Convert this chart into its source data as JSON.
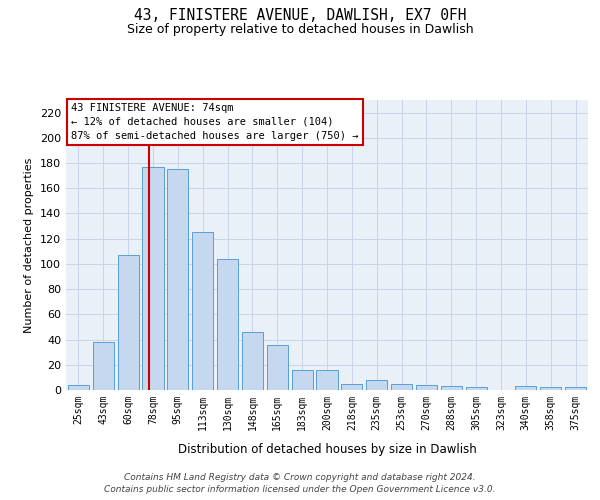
{
  "title": "43, FINISTERE AVENUE, DAWLISH, EX7 0FH",
  "subtitle": "Size of property relative to detached houses in Dawlish",
  "xlabel": "Distribution of detached houses by size in Dawlish",
  "ylabel": "Number of detached properties",
  "bar_labels": [
    "25sqm",
    "43sqm",
    "60sqm",
    "78sqm",
    "95sqm",
    "113sqm",
    "130sqm",
    "148sqm",
    "165sqm",
    "183sqm",
    "200sqm",
    "218sqm",
    "235sqm",
    "253sqm",
    "270sqm",
    "288sqm",
    "305sqm",
    "323sqm",
    "340sqm",
    "358sqm",
    "375sqm"
  ],
  "bar_values": [
    4,
    38,
    107,
    177,
    175,
    125,
    104,
    46,
    36,
    16,
    16,
    5,
    8,
    5,
    4,
    3,
    2,
    0,
    3,
    2,
    2
  ],
  "bar_color": "#c5d8f0",
  "bar_edge_color": "#5a9fd4",
  "ylim": [
    0,
    230
  ],
  "yticks": [
    0,
    20,
    40,
    60,
    80,
    100,
    120,
    140,
    160,
    180,
    200,
    220
  ],
  "vline_x": 2.82,
  "vline_color": "#cc0000",
  "annotation_line1": "43 FINISTERE AVENUE: 74sqm",
  "annotation_line2": "← 12% of detached houses are smaller (104)",
  "annotation_line3": "87% of semi-detached houses are larger (750) →",
  "annotation_box_color": "#ffffff",
  "annotation_box_edge": "#cc0000",
  "footer_line1": "Contains HM Land Registry data © Crown copyright and database right 2024.",
  "footer_line2": "Contains public sector information licensed under the Open Government Licence v3.0.",
  "background_color": "#ffffff",
  "axes_bg_color": "#eaf0f8",
  "grid_color": "#c8d4e8"
}
